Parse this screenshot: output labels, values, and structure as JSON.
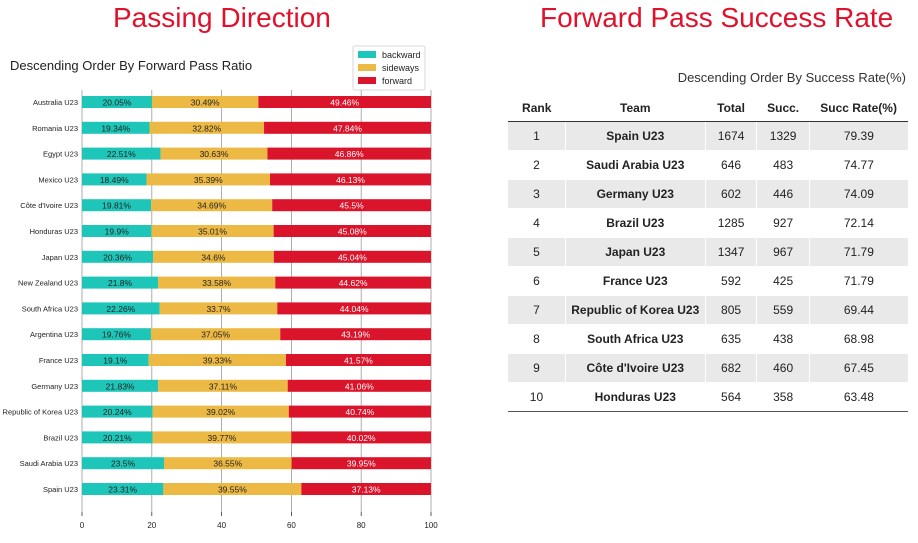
{
  "titles": {
    "left": "Passing Direction",
    "right": "Forward Pass Success Rate"
  },
  "chart_data": {
    "type": "bar",
    "orientation": "horizontal",
    "stacked": true,
    "title": "Descending Order By Forward Pass Ratio",
    "xlim": [
      0,
      100
    ],
    "xticks": [
      0,
      20,
      40,
      60,
      80,
      100
    ],
    "categories": [
      "Australia U23",
      "Romania U23",
      "Egypt U23",
      "Mexico U23",
      "Côte d'Ivoire U23",
      "Honduras U23",
      "Japan U23",
      "New Zealand U23",
      "South Africa U23",
      "Argentina U23",
      "France U23",
      "Germany U23",
      "Republic of Korea U23",
      "Brazil U23",
      "Saudi Arabia U23",
      "Spain U23"
    ],
    "series": [
      {
        "name": "backward",
        "color": "#1dc6b8",
        "values": [
          20.05,
          19.34,
          22.51,
          18.49,
          19.81,
          19.9,
          20.36,
          21.8,
          22.26,
          19.76,
          19.1,
          21.83,
          20.24,
          20.21,
          23.5,
          23.31
        ]
      },
      {
        "name": "sideways",
        "color": "#ecb944",
        "values": [
          30.49,
          32.82,
          30.63,
          35.39,
          34.69,
          35.01,
          34.6,
          33.58,
          33.7,
          37.05,
          39.33,
          37.11,
          39.02,
          39.77,
          36.55,
          39.55
        ]
      },
      {
        "name": "forward",
        "color": "#d9142b",
        "values": [
          49.46,
          47.84,
          46.86,
          46.13,
          45.5,
          45.08,
          45.04,
          44.62,
          44.04,
          43.19,
          41.57,
          41.06,
          40.74,
          40.02,
          39.95,
          37.13
        ]
      }
    ],
    "labels": [
      [
        "20.05%",
        "30.49%",
        "49.46%"
      ],
      [
        "19.34%",
        "32.82%",
        "47.84%"
      ],
      [
        "22.51%",
        "30.63%",
        "46.86%"
      ],
      [
        "18.49%",
        "35.39%",
        "46.13%"
      ],
      [
        "19.81%",
        "34.69%",
        "45.5%"
      ],
      [
        "19.9%",
        "35.01%",
        "45.08%"
      ],
      [
        "20.36%",
        "34.6%",
        "45.04%"
      ],
      [
        "21.8%",
        "33.58%",
        "44.62%"
      ],
      [
        "22.26%",
        "33.7%",
        "44.04%"
      ],
      [
        "19.76%",
        "37.05%",
        "43.19%"
      ],
      [
        "19.1%",
        "39.33%",
        "41.57%"
      ],
      [
        "21.83%",
        "37.11%",
        "41.06%"
      ],
      [
        "20.24%",
        "39.02%",
        "40.74%"
      ],
      [
        "20.21%",
        "39.77%",
        "40.02%"
      ],
      [
        "23.5%",
        "36.55%",
        "39.95%"
      ],
      [
        "23.31%",
        "39.55%",
        "37.13%"
      ]
    ],
    "legend": "top-right"
  },
  "table": {
    "subtitle": "Descending Order By Success Rate(%)",
    "headers": [
      "Rank",
      "Team",
      "Total",
      "Succ.",
      "Succ Rate(%)"
    ],
    "rows": [
      [
        "1",
        "Spain U23",
        "1674",
        "1329",
        "79.39"
      ],
      [
        "2",
        "Saudi Arabia U23",
        "646",
        "483",
        "74.77"
      ],
      [
        "3",
        "Germany U23",
        "602",
        "446",
        "74.09"
      ],
      [
        "4",
        "Brazil U23",
        "1285",
        "927",
        "72.14"
      ],
      [
        "5",
        "Japan U23",
        "1347",
        "967",
        "71.79"
      ],
      [
        "6",
        "France U23",
        "592",
        "425",
        "71.79"
      ],
      [
        "7",
        "Republic of Korea U23",
        "805",
        "559",
        "69.44"
      ],
      [
        "8",
        "South Africa U23",
        "635",
        "438",
        "68.98"
      ],
      [
        "9",
        "Côte d'Ivoire U23",
        "682",
        "460",
        "67.45"
      ],
      [
        "10",
        "Honduras U23",
        "564",
        "358",
        "63.48"
      ]
    ]
  }
}
